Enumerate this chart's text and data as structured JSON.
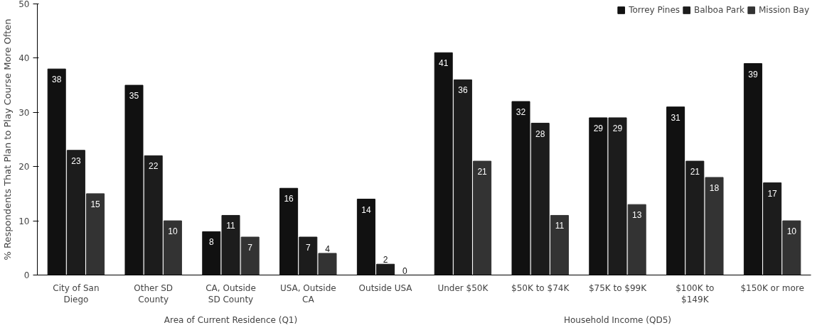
{
  "chart_data": {
    "type": "bar",
    "ylabel": "% Respondents That Plan to Play Course More Often",
    "categories": [
      "City of San Diego",
      "Other SD County",
      "CA, Outside SD County",
      "USA, Outside CA",
      "Outside USA",
      "Under $50K",
      "$50K to $74K",
      "$75K to $99K",
      "$100K to $149K",
      "$150K or more"
    ],
    "series": [
      {
        "name": "Torrey Pines",
        "color": "#111111",
        "values": [
          38,
          35,
          8,
          16,
          14,
          41,
          32,
          29,
          31,
          39
        ]
      },
      {
        "name": "Balboa Park",
        "color": "#1c1c1c",
        "values": [
          23,
          22,
          11,
          7,
          2,
          36,
          28,
          29,
          21,
          17
        ]
      },
      {
        "name": "Mission Bay",
        "color": "#333333",
        "values": [
          15,
          10,
          7,
          4,
          0,
          21,
          11,
          13,
          18,
          10
        ]
      }
    ],
    "annotations": [
      "Area of Current Residence (Q1)",
      "Household Income (QD5)"
    ],
    "ylim": [
      0,
      50
    ],
    "yticks": [
      0,
      10,
      20,
      30,
      40,
      50
    ],
    "grid": false,
    "legend": "top right",
    "data_labels": true
  }
}
